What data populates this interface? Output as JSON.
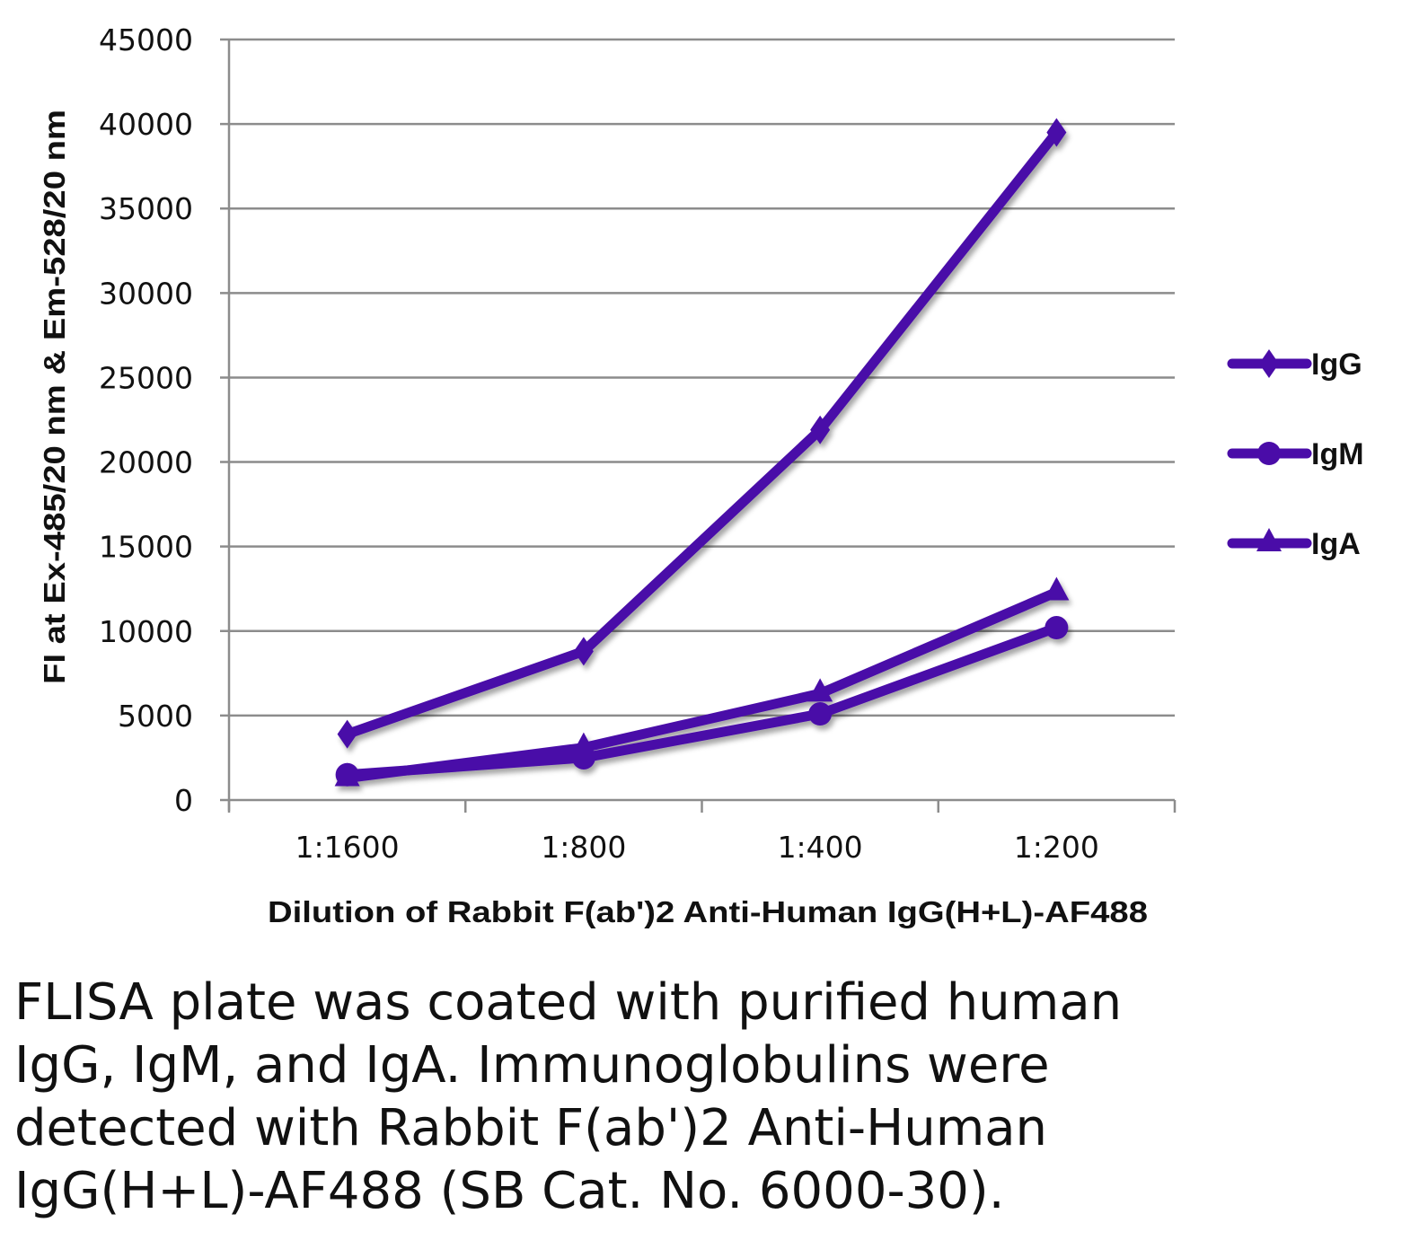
{
  "chart_data": {
    "type": "line",
    "categories": [
      "1:1600",
      "1:800",
      "1:400",
      "1:200"
    ],
    "series": [
      {
        "name": "IgG",
        "marker": "diamond",
        "values": [
          3900,
          8800,
          21900,
          39500
        ]
      },
      {
        "name": "IgM",
        "marker": "circle",
        "values": [
          1500,
          2500,
          5100,
          10200
        ]
      },
      {
        "name": "IgA",
        "marker": "triangle",
        "values": [
          1300,
          3100,
          6300,
          12300
        ]
      }
    ],
    "xlabel": "Dilution of Rabbit F(ab')2 Anti-Human IgG(H+L)-AF488",
    "ylabel": "FI at Ex-485/20 nm & Em-528/20 nm",
    "ylim": [
      0,
      45000
    ],
    "yticks": [
      0,
      5000,
      10000,
      15000,
      20000,
      25000,
      30000,
      35000,
      40000,
      45000
    ],
    "grid": true,
    "legend": "right",
    "color": "#4a0ca8"
  },
  "caption": "FLISA plate was coated with purified human\nIgG, IgM, and IgA.  Immunoglobulins were\ndetected with Rabbit F(ab')2 Anti-Human\nIgG(H+L)-AF488 (SB Cat. No. 6000-30)."
}
